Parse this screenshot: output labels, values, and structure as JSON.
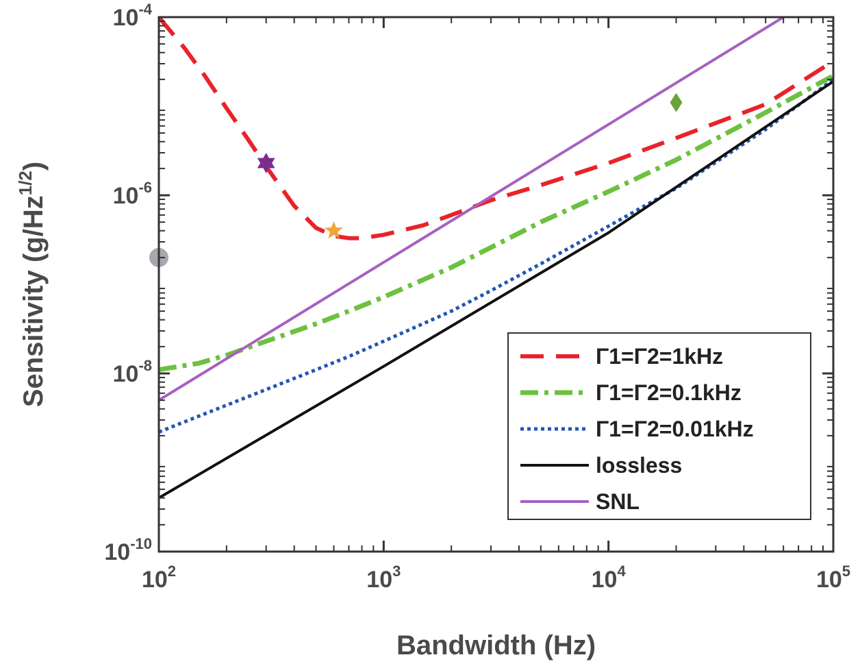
{
  "chart_data": {
    "type": "line",
    "xlabel": "Bandwidth (Hz)",
    "ylabel": "Sensitivity (g/Hz",
    "ylabel_sup": "1/2",
    "ylabel_close": ")",
    "xscale": "log",
    "yscale": "log",
    "xlim": [
      100,
      100000
    ],
    "ylim": [
      1e-10,
      0.0001
    ],
    "x_ticks": [
      {
        "value": 100,
        "base": "10",
        "exp": "2"
      },
      {
        "value": 1000,
        "base": "10",
        "exp": "3"
      },
      {
        "value": 10000,
        "base": "10",
        "exp": "4"
      },
      {
        "value": 100000,
        "base": "10",
        "exp": "5"
      }
    ],
    "y_ticks": [
      {
        "value": 1e-10,
        "base": "10",
        "exp": "-10"
      },
      {
        "value": 1e-08,
        "base": "10",
        "exp": "-8"
      },
      {
        "value": 1e-06,
        "base": "10",
        "exp": "-6"
      },
      {
        "value": 0.0001,
        "base": "10",
        "exp": "-4"
      }
    ],
    "grid": false,
    "legend_position": "bottom-right",
    "series": [
      {
        "name": "Γ1=Γ2=1kHz",
        "color": "#e8232a",
        "style": "dashed",
        "x": [
          100,
          130,
          160,
          200,
          250,
          300,
          400,
          500,
          600,
          700,
          800,
          1000,
          1500,
          2000,
          3000,
          5000,
          10000,
          20000,
          50000,
          100000
        ],
        "y": [
          0.0001,
          4.5e-05,
          2.2e-05,
          9.5e-06,
          4.2e-06,
          2.1e-06,
          7.6e-07,
          4.3e-07,
          3.5e-07,
          3.3e-07,
          3.3e-07,
          3.6e-07,
          4.6e-07,
          6e-07,
          8.8e-07,
          1.3e-06,
          2.3e-06,
          4.4e-06,
          1.05e-05,
          3.2e-05
        ]
      },
      {
        "name": "Γ1=Γ2=0.1kHz",
        "color": "#6cc13f",
        "style": "dashdot",
        "x": [
          100,
          150,
          200,
          300,
          500,
          700,
          1000,
          2000,
          3000,
          5000,
          10000,
          20000,
          50000,
          100000
        ],
        "y": [
          1.1e-08,
          1.3e-08,
          1.6e-08,
          2.3e-08,
          3.6e-08,
          5e-08,
          7.2e-08,
          1.55e-07,
          2.6e-07,
          5e-07,
          1.1e-06,
          2.5e-06,
          8.5e-06,
          2.2e-05
        ]
      },
      {
        "name": "Γ1=Γ2=0.01kHz",
        "color": "#2255b5",
        "style": "dotted",
        "x": [
          100,
          150,
          200,
          300,
          500,
          700,
          1000,
          2000,
          3000,
          5000,
          10000,
          20000,
          50000,
          100000
        ],
        "y": [
          2.2e-09,
          3.3e-09,
          4.4e-09,
          6.6e-09,
          1.1e-08,
          1.55e-08,
          2.3e-08,
          5e-08,
          8.5e-08,
          1.7e-07,
          4.5e-07,
          1.2e-06,
          5.5e-06,
          2e-05
        ]
      },
      {
        "name": "lossless",
        "color": "#111111",
        "style": "solid",
        "x": [
          100,
          1000,
          10000,
          100000
        ],
        "y": [
          4e-10,
          1.2e-08,
          3.8e-07,
          1.9e-05
        ]
      },
      {
        "name": "SNL",
        "color": "#a860c0",
        "style": "solid",
        "x": [
          100,
          60000
        ],
        "y": [
          5e-09,
          0.0001
        ]
      }
    ],
    "markers": [
      {
        "shape": "circle",
        "color": "#a5a8ae",
        "x": 100,
        "y": 2e-07
      },
      {
        "shape": "hexagram",
        "color": "#7b2d8e",
        "x": 300,
        "y": 2.3e-06
      },
      {
        "shape": "star",
        "color": "#f0a63b",
        "x": 600,
        "y": 4e-07
      },
      {
        "shape": "diamond",
        "color": "#6aa33a",
        "x": 20000,
        "y": 1.1e-05
      }
    ]
  }
}
